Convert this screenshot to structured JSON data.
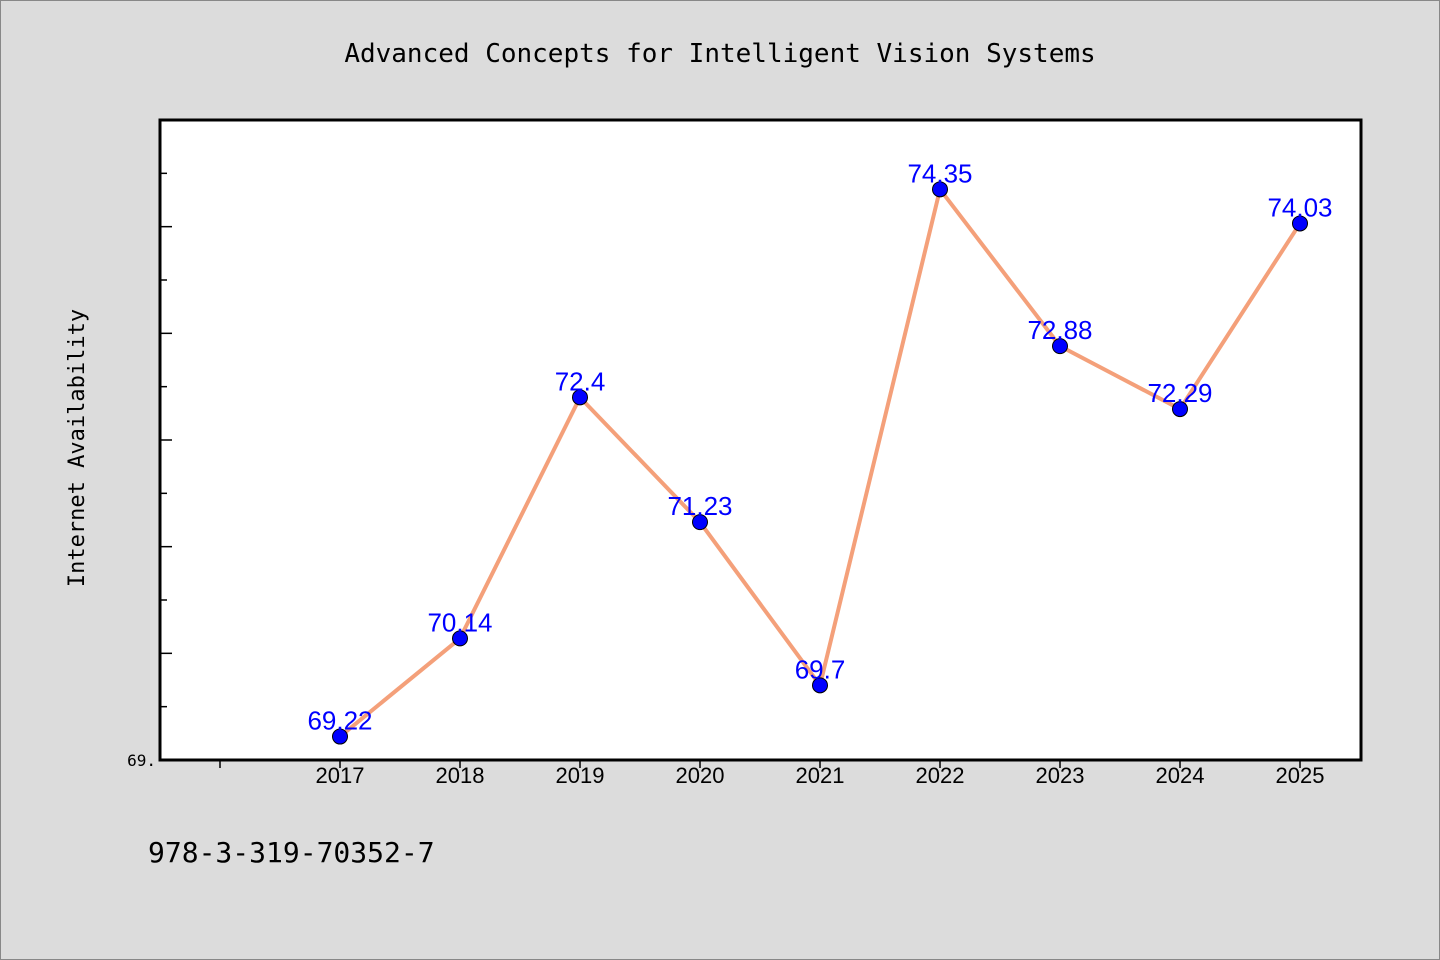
{
  "chart_data": {
    "type": "line",
    "title": "Advanced Concepts for Intelligent Vision Systems",
    "xlabel": "",
    "ylabel": "Internet Availability",
    "categories": [
      "2017",
      "2018",
      "2019",
      "2020",
      "2021",
      "2022",
      "2023",
      "2024",
      "2025"
    ],
    "series": [
      {
        "values": [
          69.22,
          70.14,
          72.4,
          71.23,
          69.7,
          74.35,
          72.88,
          72.29,
          74.03
        ],
        "data_labels": [
          "69.22",
          "70.14",
          "72.4",
          "71.23",
          "69.7",
          "74.35",
          "72.88",
          "72.29",
          "74.03"
        ],
        "line_color": "#f4a07a",
        "marker_color": "#0000ff"
      }
    ],
    "ylim": [
      69.0,
      75.0
    ],
    "yticks": [
      69.0,
      69.5,
      70.0,
      70.5,
      71.0,
      71.5,
      72.0,
      72.5,
      73.0,
      73.5,
      74.0,
      74.5,
      75.0
    ],
    "ytick_labels_visible": [
      "69."
    ],
    "grid": false,
    "legend": "none"
  },
  "footer": {
    "isbn": "978-3-319-70352-7"
  },
  "colors": {
    "background": "#dcdcdc",
    "plot_area": "#ffffff",
    "line": "#f4a07a",
    "marker": "#0000ff",
    "data_label": "#0000ff"
  }
}
